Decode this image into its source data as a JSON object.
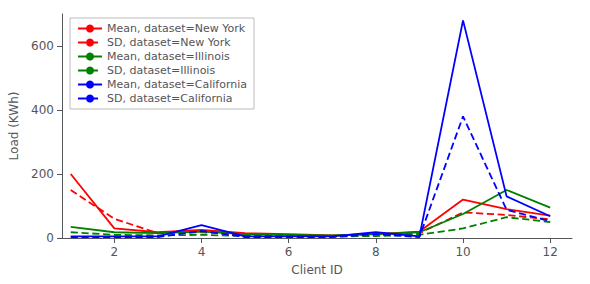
{
  "chart_data": {
    "type": "line",
    "xlabel": "Client ID",
    "ylabel": "Load (KWh)",
    "x": [
      1,
      2,
      3,
      4,
      5,
      6,
      7,
      8,
      9,
      10,
      11,
      12
    ],
    "series": [
      {
        "name": "Mean, dataset=New York",
        "color": "#ff0000",
        "line_style": "solid",
        "values": [
          200,
          30,
          18,
          25,
          15,
          12,
          8,
          12,
          20,
          120,
          90,
          70
        ]
      },
      {
        "name": "SD, dataset=New York",
        "color": "#ff0000",
        "line_style": "dashed",
        "values": [
          150,
          60,
          15,
          18,
          10,
          8,
          6,
          8,
          15,
          80,
          72,
          58
        ]
      },
      {
        "name": "Mean, dataset=Illinois",
        "color": "#008000",
        "line_style": "solid",
        "values": [
          35,
          18,
          15,
          20,
          12,
          10,
          8,
          12,
          18,
          75,
          150,
          95
        ]
      },
      {
        "name": "SD, dataset=Illinois",
        "color": "#008000",
        "line_style": "dashed",
        "values": [
          18,
          10,
          8,
          10,
          6,
          6,
          5,
          6,
          10,
          30,
          65,
          50
        ]
      },
      {
        "name": "Mean, dataset=California",
        "color": "#0000ff",
        "line_style": "solid",
        "values": [
          5,
          5,
          5,
          40,
          5,
          5,
          5,
          18,
          5,
          680,
          130,
          68
        ]
      },
      {
        "name": "SD, dataset=California",
        "color": "#0000ff",
        "line_style": "dashed",
        "values": [
          3,
          3,
          3,
          22,
          3,
          3,
          3,
          12,
          3,
          380,
          88,
          52
        ]
      }
    ],
    "xlim": [
      0.8,
      12.5
    ],
    "xticks": [
      2,
      4,
      6,
      8,
      10,
      12
    ],
    "ylim": [
      0,
      700
    ],
    "yticks": [
      0,
      200,
      400,
      600
    ],
    "grid": false,
    "legend": "upper left"
  }
}
